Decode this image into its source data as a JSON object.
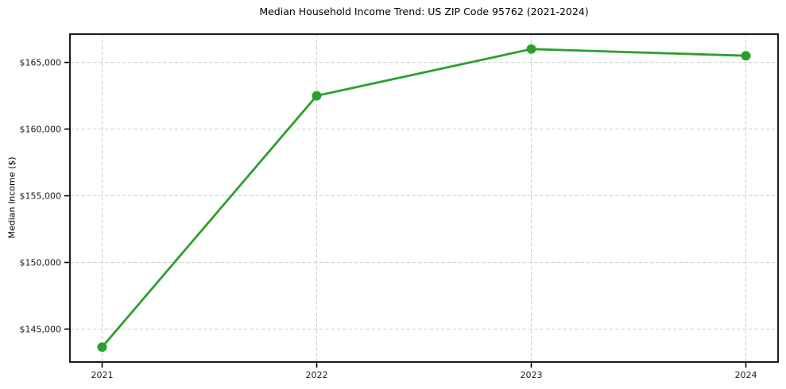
{
  "page": {
    "background": "#ffffff"
  },
  "chart_data": {
    "type": "line",
    "title": "Median Household Income Trend: US ZIP Code 95762 (2021-2024)",
    "xlabel": "",
    "ylabel": "Median Income ($)",
    "x": [
      2021,
      2022,
      2023,
      2024
    ],
    "x_tick_labels": [
      "2021",
      "2022",
      "2023",
      "2024"
    ],
    "series": [
      {
        "name": "Median Income",
        "color": "#2ca02c",
        "line_width": 2.8,
        "marker": "circle",
        "marker_radius": 6,
        "values": [
          143650,
          162500,
          166000,
          165500
        ]
      }
    ],
    "y_ticks": [
      {
        "value": 145000,
        "label": "$145,000"
      },
      {
        "value": 150000,
        "label": "$150,000"
      },
      {
        "value": 155000,
        "label": "$155,000"
      },
      {
        "value": 160000,
        "label": "$160,000"
      },
      {
        "value": 165000,
        "label": "$165,000"
      }
    ],
    "ylim": [
      142530,
      167120
    ],
    "xlim": [
      2020.85,
      2024.15
    ],
    "grid": {
      "visible": true,
      "style": "dashed",
      "color": "#cfcfcf"
    },
    "axes": {
      "spine_color": "#000000",
      "tick_color": "#000000"
    },
    "legend": {
      "visible": false
    }
  }
}
